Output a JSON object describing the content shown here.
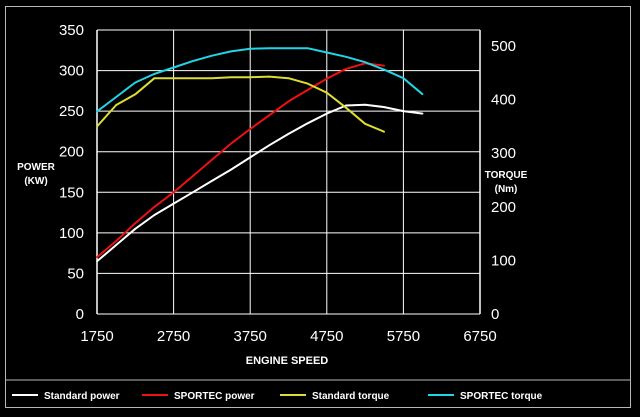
{
  "chart_data": {
    "type": "line",
    "x": [
      1750,
      2000,
      2250,
      2500,
      2750,
      3000,
      3250,
      3500,
      3750,
      4000,
      4250,
      4500,
      4750,
      5000,
      5250,
      5500,
      5750,
      6000,
      6250,
      6500,
      6750
    ],
    "xlabel": "ENGINE SPEED",
    "xlim": [
      1750,
      6750
    ],
    "xticks": [
      "1750",
      "2750",
      "3750",
      "4750",
      "5750",
      "6750"
    ],
    "y_left": {
      "label_lines": [
        "POWER",
        "(KW)"
      ],
      "lim": [
        0,
        350
      ],
      "ticks": [
        "0",
        "50",
        "100",
        "150",
        "200",
        "250",
        "300",
        "350"
      ]
    },
    "y_right": {
      "label_lines": [
        "TORQUE",
        "(Nm)"
      ],
      "lim": [
        0,
        530
      ],
      "ticks": [
        "0",
        "100",
        "200",
        "300",
        "400",
        "500"
      ]
    },
    "grid": true,
    "legend_position": "bottom",
    "series": [
      {
        "name": "Standard power",
        "axis": "left",
        "color": "#ffffff",
        "values": [
          65,
          85,
          105,
          122,
          136,
          150,
          164,
          178,
          193,
          208,
          222,
          235,
          247,
          257,
          258,
          255,
          250,
          247,
          null,
          null,
          null
        ]
      },
      {
        "name": "SPORTEC power",
        "axis": "left",
        "color": "#ee1111",
        "values": [
          70,
          90,
          112,
          132,
          150,
          170,
          190,
          210,
          228,
          245,
          262,
          276,
          290,
          302,
          309,
          306,
          null,
          null,
          null,
          null,
          null
        ]
      },
      {
        "name": "Standard torque",
        "axis": "right",
        "color": "#dddd33",
        "values": [
          350,
          390,
          410,
          440,
          440,
          440,
          440,
          442,
          442,
          443,
          440,
          430,
          413,
          385,
          355,
          340,
          null,
          null,
          null,
          null,
          null
        ]
      },
      {
        "name": "SPORTEC torque",
        "axis": "right",
        "color": "#22d4e6",
        "values": [
          378,
          405,
          432,
          448,
          460,
          472,
          482,
          490,
          495,
          496,
          496,
          496,
          488,
          480,
          470,
          456,
          440,
          410,
          null,
          null,
          null
        ]
      }
    ]
  }
}
